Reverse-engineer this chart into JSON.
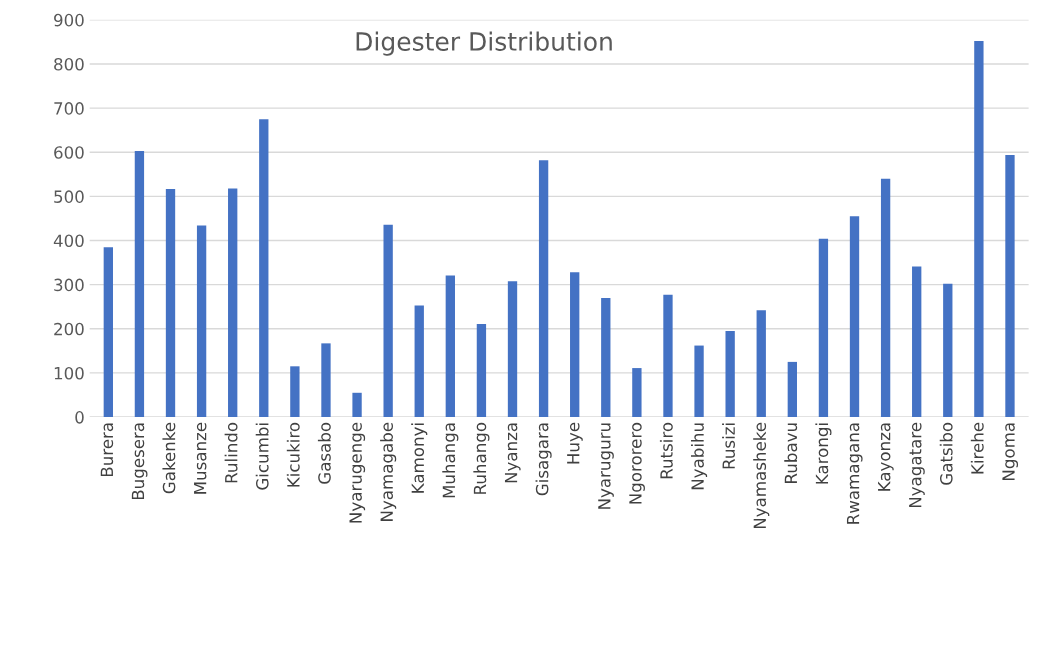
{
  "chart_data": {
    "type": "bar",
    "title": "Digester Distribution",
    "categories": [
      "Burera",
      "Bugesera",
      "Gakenke",
      "Musanze",
      "Rulindo",
      "Gicumbi",
      "Kicukiro",
      "Gasabo",
      "Nyarugenge",
      "Nyamagabe",
      "Kamonyi",
      "Muhanga",
      "Ruhango",
      "Nyanza",
      "Gisagara",
      "Huye",
      "Nyaruguru",
      "Ngororero",
      "Rutsiro",
      "Nyabihu",
      "Rusizi",
      "Nyamasheke",
      "Rubavu",
      "Karongi",
      "Rwamagana",
      "Kayonza",
      "Nyagatare",
      "Gatsibo",
      "Kirehe",
      "Ngoma"
    ],
    "values": [
      385,
      603,
      517,
      434,
      518,
      675,
      115,
      167,
      55,
      436,
      253,
      321,
      211,
      308,
      582,
      328,
      270,
      111,
      277,
      162,
      195,
      242,
      125,
      404,
      455,
      540,
      341,
      302,
      852,
      594
    ],
    "color": "#4472c4",
    "ylim": [
      0,
      900
    ],
    "yticks": [
      0,
      100,
      200,
      300,
      400,
      500,
      600,
      700,
      800,
      900
    ],
    "grid": "y"
  }
}
